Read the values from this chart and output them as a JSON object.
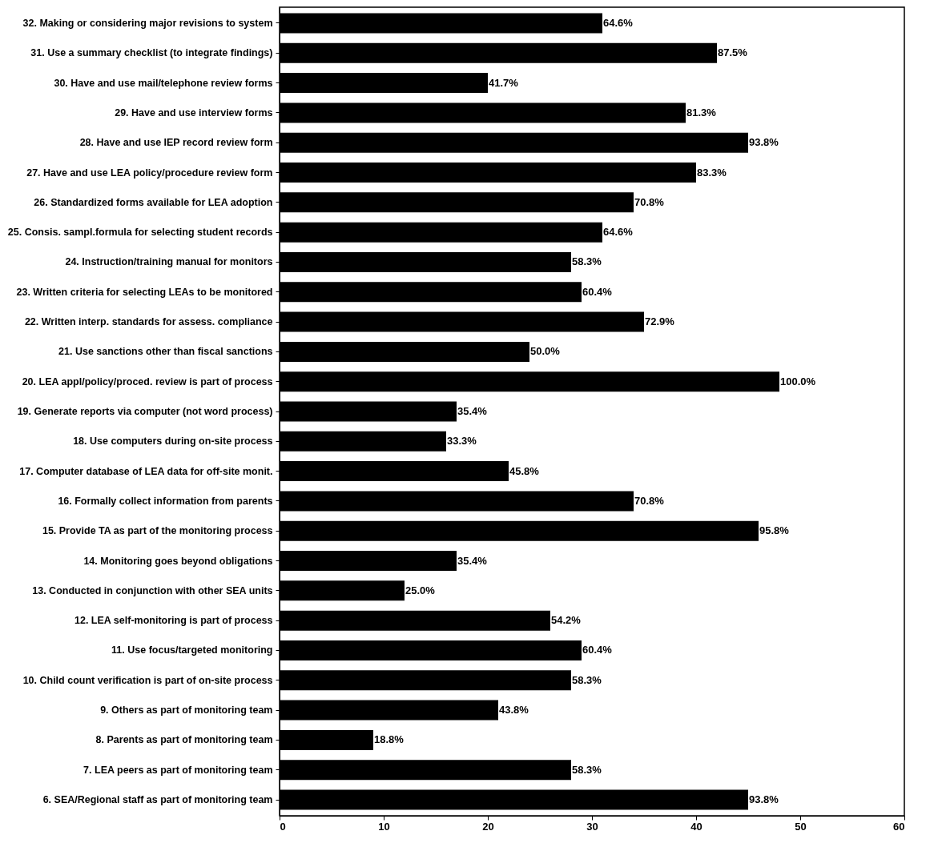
{
  "chart_data": {
    "type": "bar",
    "orientation": "horizontal",
    "categories": [
      "32. Making or considering major revisions to system",
      "31. Use a summary checklist (to integrate findings)",
      "30. Have and use mail/telephone review forms",
      "29. Have and use interview forms",
      "28. Have and use IEP record review form",
      "27. Have and use LEA policy/procedure review form",
      "26. Standardized forms available for LEA adoption",
      "25. Consis. sampl.formula for selecting student records",
      "24. Instruction/training manual for monitors",
      "23. Written criteria for selecting LEAs to be monitored",
      "22. Written interp. standards for assess. compliance",
      "21. Use sanctions other than fiscal sanctions",
      "20. LEA appl/policy/proced. review is part of process",
      "19. Generate reports via computer (not word process)",
      "18. Use computers during on-site process",
      "17. Computer database of LEA data for off-site monit.",
      "16. Formally collect information from parents",
      "15. Provide TA as part of the monitoring process",
      "14. Monitoring goes beyond  obligations",
      "13. Conducted in conjunction with other SEA units",
      "12. LEA self-monitoring is part of process",
      "11. Use focus/targeted monitoring",
      "10. Child count verification is part of on-site process",
      "9.  Others as part of monitoring team",
      "8.  Parents as part of monitoring team",
      "7.  LEA peers as part of monitoring team",
      "6.  SEA/Regional staff as part of monitoring team"
    ],
    "values": [
      31,
      42,
      20,
      39,
      45,
      40,
      34,
      31,
      28,
      29,
      35,
      24,
      48,
      17,
      16,
      22,
      34,
      46,
      17,
      12,
      26,
      29,
      28,
      21,
      9,
      28,
      45
    ],
    "color": "#000000",
    "xlim": [
      0,
      60
    ],
    "xticks": [
      0,
      10,
      20,
      30,
      40,
      50,
      60
    ],
    "annotations": [
      {
        "text": "64.6%",
        "x": 31,
        "y": "32. Making or considering major revisions to system"
      },
      {
        "text": "87.5%",
        "x": 42,
        "y": "31. Use a summary checklist (to integrate findings)"
      },
      {
        "text": "41.7%",
        "x": 20,
        "y": "30. Have and use mail/telephone review forms"
      },
      {
        "text": "81.3%",
        "x": 39,
        "y": "29. Have and use interview forms"
      },
      {
        "text": "93.8%",
        "x": 45,
        "y": "28. Have and use IEP record review form"
      },
      {
        "text": "83.3%",
        "x": 40,
        "y": "27. Have and use LEA policy/procedure review form"
      },
      {
        "text": "70.8%",
        "x": 34,
        "y": "26. Standardized forms available for LEA adoption"
      },
      {
        "text": "64.6%",
        "x": 31,
        "y": "25. Consis. sampl.formula for selecting student records"
      },
      {
        "text": "58.3%",
        "x": 28,
        "y": "24. Instruction/training manual for monitors"
      },
      {
        "text": "60.4%",
        "x": 29,
        "y": "23. Written criteria for selecting LEAs to be monitored"
      },
      {
        "text": "72.9%",
        "x": 35,
        "y": "22. Written interp. standards for assess. compliance"
      },
      {
        "text": "50.0%",
        "x": 24,
        "y": "21. Use sanctions other than fiscal sanctions"
      },
      {
        "text": "100.0%",
        "x": 48,
        "y": "20. LEA appl/policy/proced. review is part of process"
      },
      {
        "text": "35.4%",
        "x": 17,
        "y": "19. Generate reports via computer (not word process)"
      },
      {
        "text": "33.3%",
        "x": 16,
        "y": "18. Use computers during on-site process"
      },
      {
        "text": "45.8%",
        "x": 22,
        "y": "17. Computer database of LEA data for off-site monit."
      },
      {
        "text": "70.8%",
        "x": 34,
        "y": "16. Formally collect information from parents"
      },
      {
        "text": "95.8%",
        "x": 46,
        "y": "15. Provide TA as part of the monitoring process"
      },
      {
        "text": "35.4%",
        "x": 17,
        "y": "14. Monitoring goes beyond  obligations"
      },
      {
        "text": "25.0%",
        "x": 12,
        "y": "13. Conducted in conjunction with other SEA units"
      },
      {
        "text": "54.2%",
        "x": 26,
        "y": "12. LEA self-monitoring is part of process"
      },
      {
        "text": "60.4%",
        "x": 29,
        "y": "11. Use focus/targeted monitoring"
      },
      {
        "text": "58.3%",
        "x": 28,
        "y": "10. Child count verification is part of on-site process"
      },
      {
        "text": "43.8%",
        "x": 21,
        "y": "9.  Others as part of monitoring team"
      },
      {
        "text": "18.8%",
        "x": 9,
        "y": "8.  Parents as part of monitoring team"
      },
      {
        "text": "58.3%",
        "x": 28,
        "y": "7.  LEA peers as part of monitoring team"
      },
      {
        "text": "93.8%",
        "x": 45,
        "y": "6.  SEA/Regional staff as part of monitoring team"
      }
    ]
  }
}
